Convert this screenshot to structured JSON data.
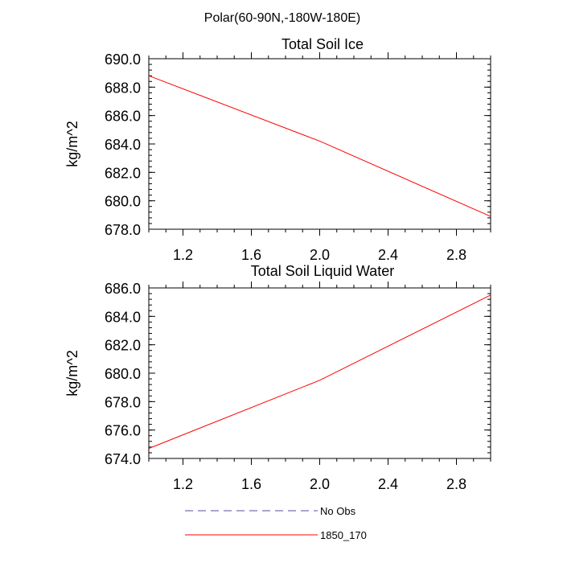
{
  "figure_title": "Polar(60-90N,-180W-180E)",
  "colors": {
    "series_red": "#ff0000",
    "no_obs_blue": "#5050a0",
    "axis": "#000000"
  },
  "legend": {
    "entries": [
      {
        "label": "No Obs",
        "style": "dashed",
        "color": "#5050a0"
      },
      {
        "label": "1850_170",
        "style": "solid",
        "color": "#ff0000"
      }
    ]
  },
  "chart_data": [
    {
      "type": "line",
      "title": "Total Soil Ice",
      "ylabel": "kg/m^2",
      "xlabel": "",
      "xlim": [
        1.0,
        3.0
      ],
      "ylim": [
        678.0,
        690.0
      ],
      "x_ticks": [
        "1.2",
        "1.6",
        "2.0",
        "2.4",
        "2.8"
      ],
      "y_ticks": [
        "678.0",
        "680.0",
        "682.0",
        "684.0",
        "686.0",
        "688.0",
        "690.0"
      ],
      "grid": false,
      "series": [
        {
          "name": "1850_170",
          "x": [
            1.0,
            2.0,
            3.0
          ],
          "y": [
            688.8,
            684.2,
            678.9
          ]
        }
      ]
    },
    {
      "type": "line",
      "title": "Total Soil Liquid Water",
      "ylabel": "kg/m^2",
      "xlabel": "",
      "xlim": [
        1.0,
        3.0
      ],
      "ylim": [
        674.0,
        686.0
      ],
      "x_ticks": [
        "1.2",
        "1.6",
        "2.0",
        "2.4",
        "2.8"
      ],
      "y_ticks": [
        "674.0",
        "676.0",
        "678.0",
        "680.0",
        "682.0",
        "684.0",
        "686.0"
      ],
      "grid": false,
      "series": [
        {
          "name": "1850_170",
          "x": [
            1.0,
            2.0,
            3.0
          ],
          "y": [
            674.7,
            679.5,
            685.5
          ]
        }
      ]
    }
  ]
}
